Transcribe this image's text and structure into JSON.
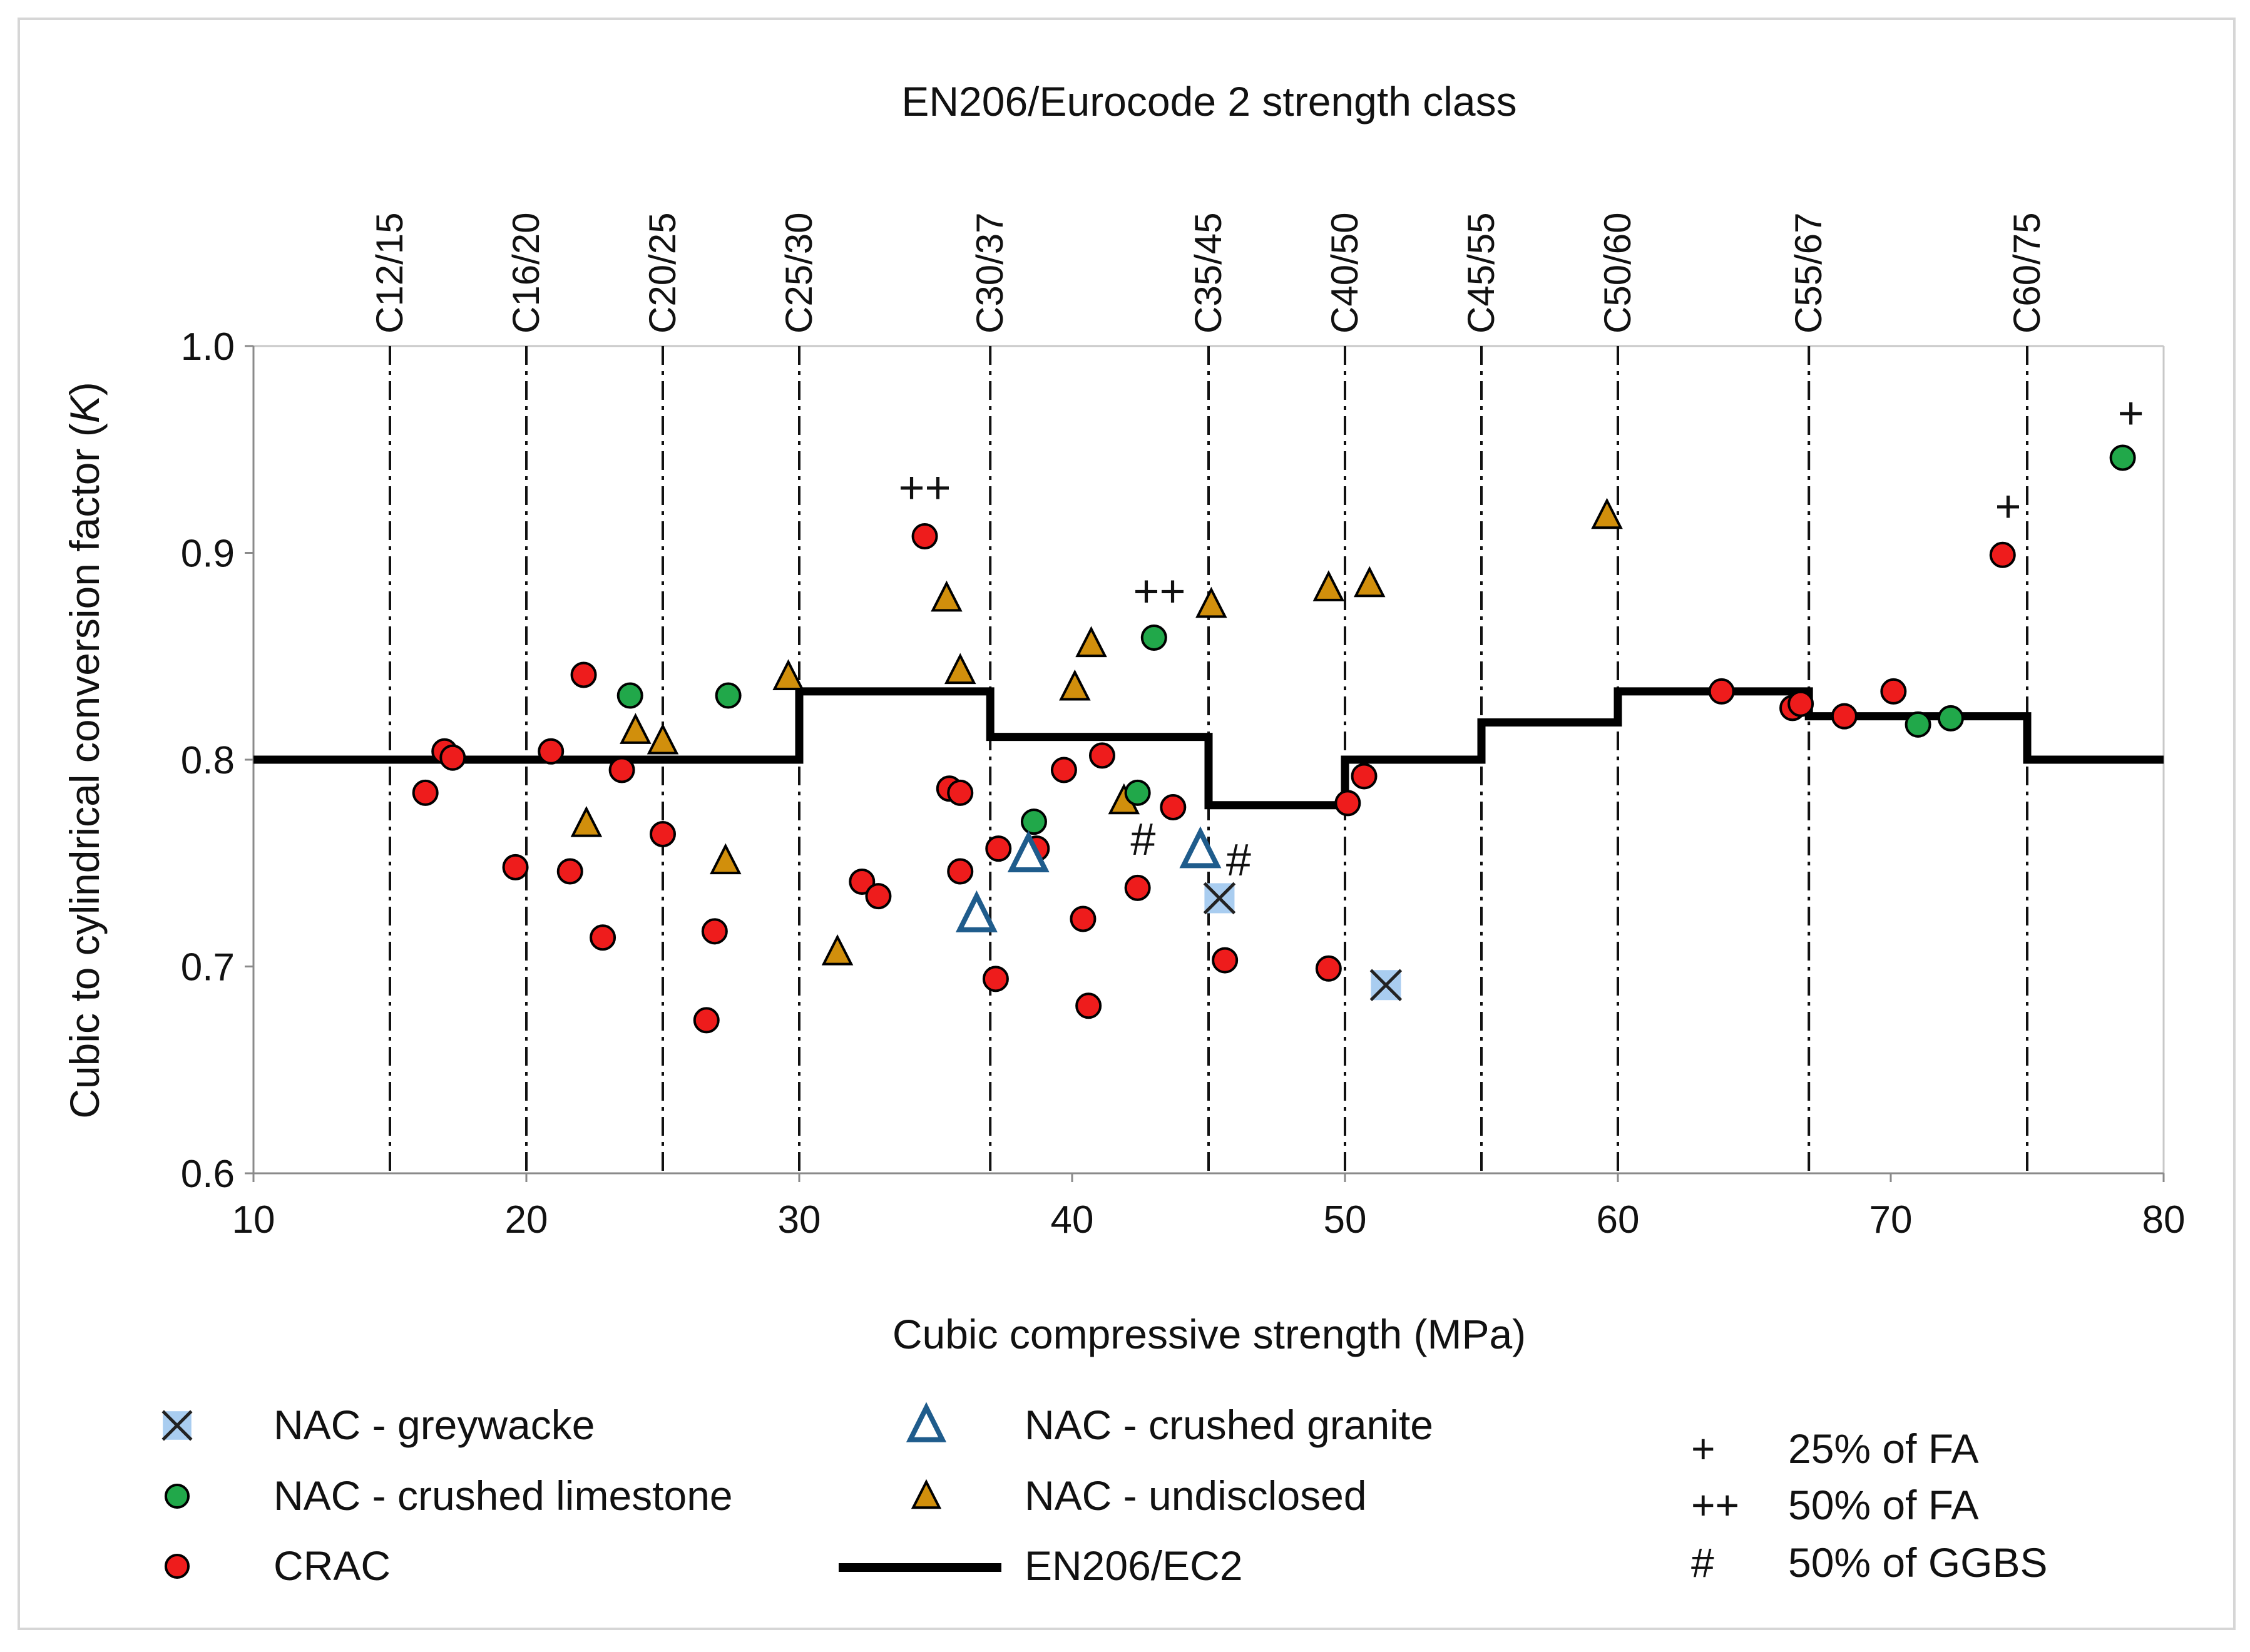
{
  "chart_data": {
    "type": "scatter",
    "title": "EN206/Eurocode 2 strength class",
    "xlabel": "Cubic compressive strength (MPa)",
    "ylabel_prefix": "Cubic to cylindrical conversion factor (",
    "ylabel_var": "K",
    "ylabel_suffix": ")",
    "xlim": [
      10,
      80
    ],
    "ylim": [
      0.6,
      1.0
    ],
    "x_ticks": [
      "10",
      "20",
      "30",
      "40",
      "50",
      "60",
      "70",
      "80"
    ],
    "y_ticks": [
      "0.6",
      "0.7",
      "0.8",
      "0.9",
      "1.0"
    ],
    "strength_classes": [
      {
        "label": "C12/15",
        "x": 15
      },
      {
        "label": "C16/20",
        "x": 20
      },
      {
        "label": "C20/25",
        "x": 25
      },
      {
        "label": "C25/30",
        "x": 30
      },
      {
        "label": "C30/37",
        "x": 37
      },
      {
        "label": "C35/45",
        "x": 45
      },
      {
        "label": "C40/50",
        "x": 50
      },
      {
        "label": "C45/55",
        "x": 55
      },
      {
        "label": "C50/60",
        "x": 60
      },
      {
        "label": "C55/67",
        "x": 67
      },
      {
        "label": "C60/75",
        "x": 75
      }
    ],
    "step_line": {
      "name": "EN206/EC2",
      "points": [
        [
          10,
          0.8
        ],
        [
          30,
          0.8
        ],
        [
          30,
          0.833
        ],
        [
          37,
          0.833
        ],
        [
          37,
          0.811
        ],
        [
          45,
          0.811
        ],
        [
          45,
          0.778
        ],
        [
          50,
          0.778
        ],
        [
          50,
          0.8
        ],
        [
          55,
          0.8
        ],
        [
          55,
          0.818
        ],
        [
          60,
          0.818
        ],
        [
          60,
          0.833
        ],
        [
          67,
          0.833
        ],
        [
          67,
          0.821
        ],
        [
          75,
          0.821
        ],
        [
          75,
          0.8
        ],
        [
          80,
          0.8
        ]
      ]
    },
    "series": [
      {
        "name": "NAC - greywacke",
        "marker": "x",
        "color": "#a9cdf0",
        "points": [
          [
            45.4,
            0.733
          ],
          [
            51.5,
            0.691
          ]
        ]
      },
      {
        "name": "NAC - crushed limestone",
        "marker": "circle",
        "color": "#21a84a",
        "points": [
          [
            23.8,
            0.831
          ],
          [
            27.4,
            0.831
          ],
          [
            38.6,
            0.77
          ],
          [
            42.4,
            0.784
          ],
          [
            43.0,
            0.859
          ],
          [
            71.0,
            0.817
          ],
          [
            72.2,
            0.82
          ],
          [
            78.5,
            0.946
          ]
        ]
      },
      {
        "name": "CRAC",
        "marker": "circle",
        "color": "#ee1c1c",
        "points": [
          [
            16.3,
            0.784
          ],
          [
            17.0,
            0.804
          ],
          [
            17.3,
            0.801
          ],
          [
            19.6,
            0.748
          ],
          [
            20.9,
            0.804
          ],
          [
            21.6,
            0.746
          ],
          [
            22.1,
            0.841
          ],
          [
            22.8,
            0.714
          ],
          [
            23.5,
            0.795
          ],
          [
            25.0,
            0.764
          ],
          [
            26.6,
            0.674
          ],
          [
            26.9,
            0.717
          ],
          [
            32.3,
            0.741
          ],
          [
            32.9,
            0.734
          ],
          [
            34.6,
            0.908
          ],
          [
            35.5,
            0.786
          ],
          [
            35.9,
            0.784
          ],
          [
            35.9,
            0.746
          ],
          [
            37.2,
            0.694
          ],
          [
            37.3,
            0.757
          ],
          [
            38.7,
            0.757
          ],
          [
            39.7,
            0.795
          ],
          [
            40.4,
            0.723
          ],
          [
            40.6,
            0.681
          ],
          [
            41.1,
            0.802
          ],
          [
            42.4,
            0.738
          ],
          [
            43.7,
            0.777
          ],
          [
            45.6,
            0.703
          ],
          [
            49.4,
            0.699
          ],
          [
            50.1,
            0.779
          ],
          [
            50.7,
            0.792
          ],
          [
            63.8,
            0.833
          ],
          [
            66.4,
            0.825
          ],
          [
            66.7,
            0.827
          ],
          [
            68.3,
            0.821
          ],
          [
            70.1,
            0.833
          ],
          [
            74.1,
            0.899
          ]
        ]
      },
      {
        "name": "NAC - crushed granite",
        "marker": "triangle-open",
        "color": "#1f5c8c",
        "points": [
          [
            36.5,
            0.725
          ],
          [
            38.4,
            0.754
          ],
          [
            44.7,
            0.756
          ]
        ]
      },
      {
        "name": "NAC - undisclosed",
        "marker": "triangle",
        "color": "#d18f0c",
        "points": [
          [
            22.2,
            0.769
          ],
          [
            24.0,
            0.814
          ],
          [
            25.0,
            0.809
          ],
          [
            27.3,
            0.751
          ],
          [
            29.6,
            0.84
          ],
          [
            31.4,
            0.707
          ],
          [
            35.4,
            0.878
          ],
          [
            35.9,
            0.843
          ],
          [
            40.1,
            0.835
          ],
          [
            40.7,
            0.856
          ],
          [
            41.9,
            0.78
          ],
          [
            45.1,
            0.875
          ],
          [
            49.4,
            0.883
          ],
          [
            50.9,
            0.885
          ],
          [
            59.6,
            0.918
          ]
        ]
      }
    ],
    "annotations": [
      {
        "text": "++",
        "x": 34.6,
        "y": 0.924
      },
      {
        "text": "++",
        "x": 43.2,
        "y": 0.874
      },
      {
        "text": "+",
        "x": 74.3,
        "y": 0.915
      },
      {
        "text": "+",
        "x": 78.8,
        "y": 0.96
      },
      {
        "text": "#",
        "x": 42.6,
        "y": 0.754
      },
      {
        "text": "#",
        "x": 46.1,
        "y": 0.744
      }
    ],
    "legend": [
      {
        "label": "NAC - greywacke",
        "marker": "x"
      },
      {
        "label": "NAC - crushed limestone",
        "marker": "circle-green"
      },
      {
        "label": "CRAC",
        "marker": "circle-red"
      },
      {
        "label": "NAC - crushed granite",
        "marker": "triangle-open"
      },
      {
        "label": "NAC - undisclosed",
        "marker": "triangle"
      },
      {
        "label": "EN206/EC2",
        "marker": "line"
      }
    ],
    "notes": [
      {
        "symbol": "+",
        "text": "25% of FA"
      },
      {
        "symbol": "++",
        "text": "50% of FA"
      },
      {
        "symbol": "#",
        "text": "50% of GGBS"
      }
    ]
  }
}
